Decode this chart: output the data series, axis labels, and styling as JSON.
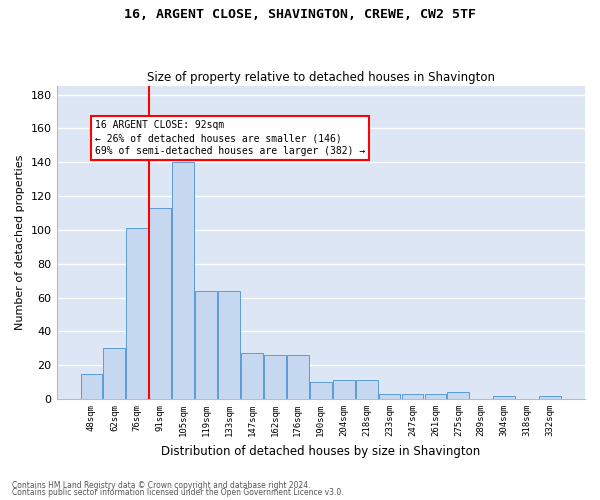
{
  "title": "16, ARGENT CLOSE, SHAVINGTON, CREWE, CW2 5TF",
  "subtitle": "Size of property relative to detached houses in Shavington",
  "xlabel": "Distribution of detached houses by size in Shavington",
  "ylabel": "Number of detached properties",
  "categories": [
    "48sqm",
    "62sqm",
    "76sqm",
    "91sqm",
    "105sqm",
    "119sqm",
    "133sqm",
    "147sqm",
    "162sqm",
    "176sqm",
    "190sqm",
    "204sqm",
    "218sqm",
    "233sqm",
    "247sqm",
    "261sqm",
    "275sqm",
    "289sqm",
    "304sqm",
    "318sqm",
    "332sqm"
  ],
  "values": [
    15,
    30,
    101,
    113,
    140,
    64,
    64,
    27,
    26,
    26,
    10,
    11,
    11,
    3,
    3,
    3,
    4,
    0,
    2,
    0,
    2
  ],
  "bar_color": "#c5d8f0",
  "bar_edge_color": "#5b9bd5",
  "background_color": "#dce6f5",
  "grid_color": "#ffffff",
  "property_label": "16 ARGENT CLOSE: 92sqm",
  "pct_smaller": 26,
  "n_smaller": 146,
  "pct_larger_semi": 69,
  "n_larger_semi": 382,
  "vline_bar_index": 3,
  "ylim_max": 185,
  "yticks": [
    0,
    20,
    40,
    60,
    80,
    100,
    120,
    140,
    160,
    180
  ],
  "footer1": "Contains HM Land Registry data © Crown copyright and database right 2024.",
  "footer2": "Contains public sector information licensed under the Open Government Licence v3.0."
}
